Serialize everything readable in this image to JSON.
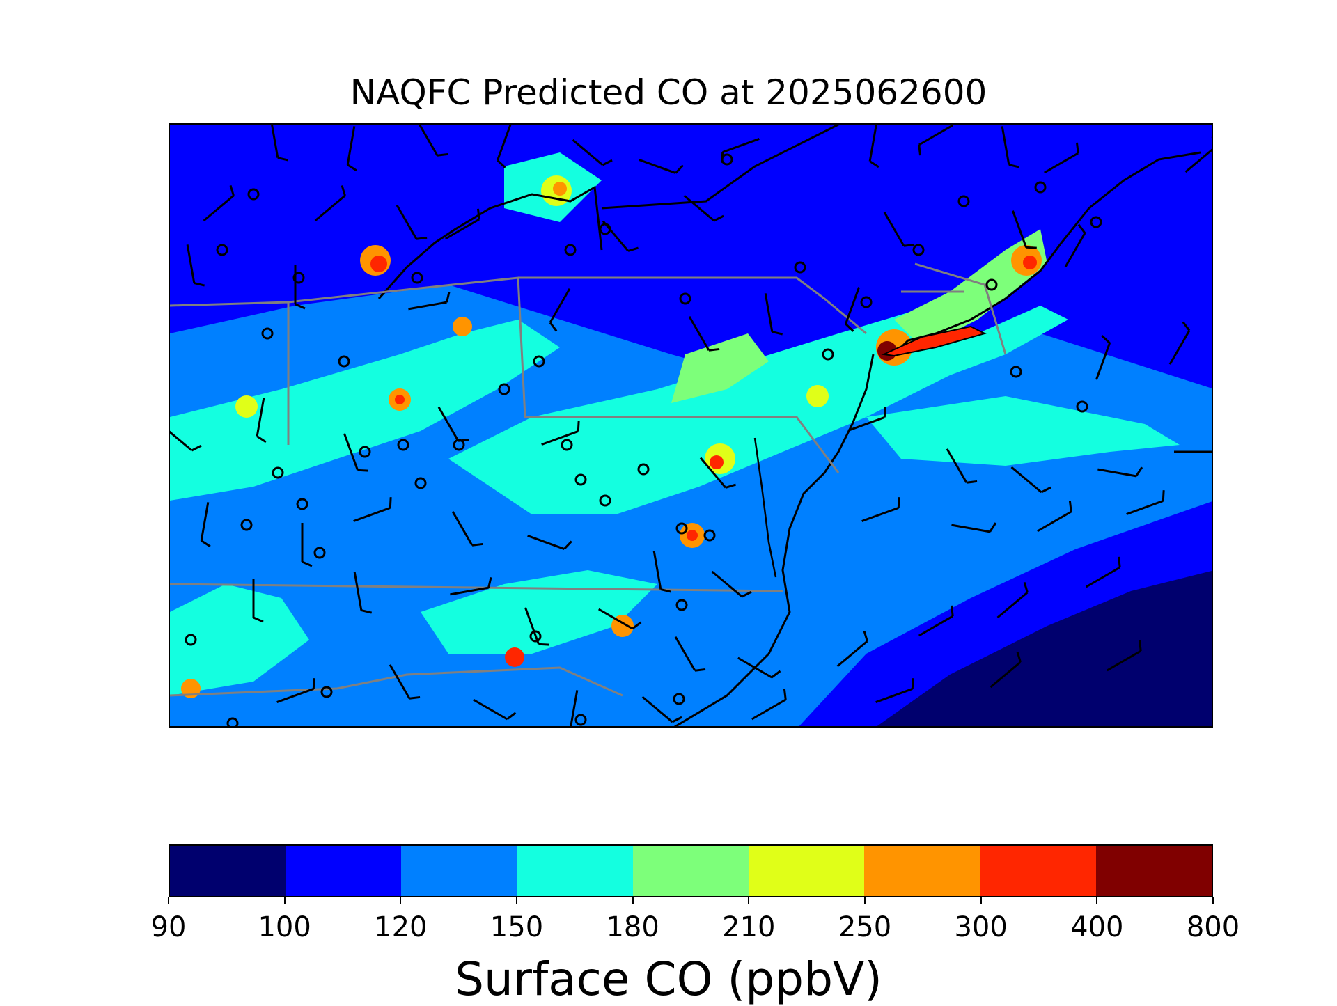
{
  "title": "NAQFC Predicted CO at 2025062600",
  "colorbar": {
    "label": "Surface CO (ppbV)",
    "ticks": [
      "90",
      "100",
      "120",
      "150",
      "180",
      "210",
      "250",
      "300",
      "400",
      "800"
    ],
    "colors": [
      "#00006e",
      "#0000ff",
      "#0080ff",
      "#14ffe0",
      "#7dff7a",
      "#e0ff18",
      "#ff9400",
      "#ff2600",
      "#800000"
    ]
  },
  "map": {
    "ocean_gradient": [
      "#0080ff",
      "#0000ff",
      "#00006e"
    ],
    "coastline_color": "#000000",
    "state_border_color": "#808080",
    "wind_barb_color": "#000000"
  }
}
